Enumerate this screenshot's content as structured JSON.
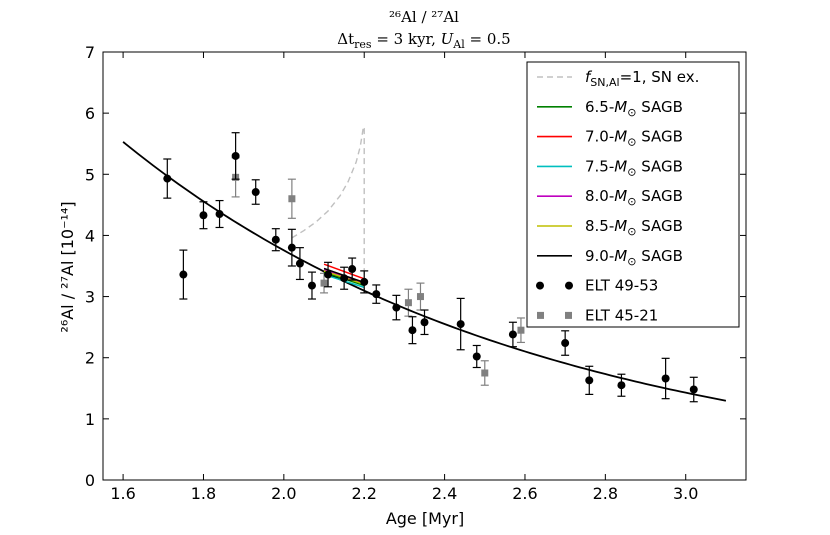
{
  "chart_data": {
    "type": "scatter",
    "title_line1": "²⁶Al / ²⁷Al",
    "title_line2": "Δt",
    "title_line2_sub": "res",
    "title_line2_rest": " = 3 kyr, ",
    "title_line2_u": "U",
    "title_line2_usub": "Al",
    "title_line2_end": " = 0.5",
    "xlabel": "Age [Myr]",
    "ylabel": "²⁶Al / ²⁷Al [10⁻¹⁴]",
    "xlim": [
      1.55,
      3.15
    ],
    "ylim": [
      0,
      7
    ],
    "xticks": [
      1.6,
      1.8,
      2.0,
      2.2,
      2.4,
      2.6,
      2.8,
      3.0
    ],
    "yticks": [
      0,
      1,
      2,
      3,
      4,
      5,
      6,
      7
    ],
    "decay_curve": {
      "name": "9.0-M☉ SAGB",
      "x_start": 1.6,
      "x_end": 3.1,
      "y0": 5.53,
      "mean_life_myr": 1.0341,
      "color": "#000000"
    },
    "sn_curve": {
      "name": "f_SN,Al=1, SN ex.",
      "color": "#c0c0c0",
      "x": [
        2.02,
        2.05,
        2.08,
        2.11,
        2.14,
        2.16,
        2.18,
        2.19,
        2.195,
        2.198,
        2.2,
        2.2
      ],
      "y": [
        3.96,
        4.08,
        4.22,
        4.4,
        4.65,
        4.88,
        5.2,
        5.45,
        5.65,
        5.78,
        5.75,
        3.1
      ]
    },
    "sagb_series": [
      {
        "name": "6.5-M☉ SAGB",
        "color": "#008000",
        "x": [
          2.1,
          2.2
        ],
        "y": [
          3.4,
          3.18
        ]
      },
      {
        "name": "7.0-M☉ SAGB",
        "color": "#ff0000",
        "x": [
          2.1,
          2.2
        ],
        "y": [
          3.53,
          3.29
        ]
      },
      {
        "name": "7.5-M☉ SAGB",
        "color": "#00bfbf",
        "x": [
          2.1,
          2.2
        ],
        "y": [
          3.36,
          3.15
        ]
      },
      {
        "name": "8.0-M☉ SAGB",
        "color": "#bf00bf",
        "x": [
          2.1,
          2.2
        ],
        "y": [
          3.44,
          3.21
        ]
      },
      {
        "name": "8.5-M☉ SAGB",
        "color": "#bfbf00",
        "x": [
          2.1,
          2.2
        ],
        "y": [
          3.42,
          3.2
        ]
      },
      {
        "name": "9.0-M☉ SAGB",
        "color": "#000000",
        "x": [
          2.1,
          2.2
        ],
        "y": [
          3.46,
          3.23
        ]
      }
    ],
    "elt_49_53": {
      "name": "ELT 49-53",
      "color": "#000000",
      "points": [
        {
          "x": 1.71,
          "y": 4.93,
          "err": 0.32
        },
        {
          "x": 1.75,
          "y": 3.36,
          "err": 0.4
        },
        {
          "x": 1.8,
          "y": 4.33,
          "err": 0.22
        },
        {
          "x": 1.84,
          "y": 4.35,
          "err": 0.22
        },
        {
          "x": 1.88,
          "y": 5.3,
          "err": 0.38
        },
        {
          "x": 1.93,
          "y": 4.71,
          "err": 0.2
        },
        {
          "x": 1.98,
          "y": 3.93,
          "err": 0.18
        },
        {
          "x": 2.02,
          "y": 3.8,
          "err": 0.3
        },
        {
          "x": 2.04,
          "y": 3.54,
          "err": 0.26
        },
        {
          "x": 2.07,
          "y": 3.18,
          "err": 0.22
        },
        {
          "x": 2.11,
          "y": 3.36,
          "err": 0.2
        },
        {
          "x": 2.15,
          "y": 3.3,
          "err": 0.18
        },
        {
          "x": 2.17,
          "y": 3.45,
          "err": 0.18
        },
        {
          "x": 2.2,
          "y": 3.24,
          "err": 0.18
        },
        {
          "x": 2.23,
          "y": 3.04,
          "err": 0.15
        },
        {
          "x": 2.28,
          "y": 2.82,
          "err": 0.2
        },
        {
          "x": 2.32,
          "y": 2.45,
          "err": 0.22
        },
        {
          "x": 2.35,
          "y": 2.58,
          "err": 0.2
        },
        {
          "x": 2.44,
          "y": 2.55,
          "err": 0.42
        },
        {
          "x": 2.48,
          "y": 2.02,
          "err": 0.18
        },
        {
          "x": 2.57,
          "y": 2.38,
          "err": 0.2
        },
        {
          "x": 2.7,
          "y": 2.24,
          "err": 0.2
        },
        {
          "x": 2.76,
          "y": 1.63,
          "err": 0.23
        },
        {
          "x": 2.84,
          "y": 1.55,
          "err": 0.18
        },
        {
          "x": 2.95,
          "y": 1.66,
          "err": 0.33
        },
        {
          "x": 3.02,
          "y": 1.48,
          "err": 0.2
        }
      ]
    },
    "elt_45_21": {
      "name": "ELT 45-21",
      "color": "#808080",
      "points": [
        {
          "x": 1.88,
          "y": 4.95,
          "err": 0.32
        },
        {
          "x": 2.02,
          "y": 4.6,
          "err": 0.32
        },
        {
          "x": 2.1,
          "y": 3.22,
          "err": 0.16
        },
        {
          "x": 2.31,
          "y": 2.9,
          "err": 0.22
        },
        {
          "x": 2.34,
          "y": 3.0,
          "err": 0.22
        },
        {
          "x": 2.5,
          "y": 1.75,
          "err": 0.2
        },
        {
          "x": 2.59,
          "y": 2.45,
          "err": 0.2
        }
      ]
    },
    "legend_position": "top-right",
    "legend": [
      {
        "label_pre": "",
        "label_var": "f",
        "label_sub": "SN,Al",
        "label_post": "=1, SN ex.",
        "style": "dashed",
        "color": "#c0c0c0"
      },
      {
        "label_pre": "6.5-",
        "label_var": "M",
        "label_sub": "⊙",
        "label_post": " SAGB",
        "style": "line",
        "color": "#008000"
      },
      {
        "label_pre": "7.0-",
        "label_var": "M",
        "label_sub": "⊙",
        "label_post": " SAGB",
        "style": "line",
        "color": "#ff0000"
      },
      {
        "label_pre": "7.5-",
        "label_var": "M",
        "label_sub": "⊙",
        "label_post": " SAGB",
        "style": "line",
        "color": "#00bfbf"
      },
      {
        "label_pre": "8.0-",
        "label_var": "M",
        "label_sub": "⊙",
        "label_post": " SAGB",
        "style": "line",
        "color": "#bf00bf"
      },
      {
        "label_pre": "8.5-",
        "label_var": "M",
        "label_sub": "⊙",
        "label_post": " SAGB",
        "style": "line",
        "color": "#bfbf00"
      },
      {
        "label_pre": "9.0-",
        "label_var": "M",
        "label_sub": "⊙",
        "label_post": " SAGB",
        "style": "line",
        "color": "#000000"
      },
      {
        "label_pre": "ELT 49-53",
        "label_var": "",
        "label_sub": "",
        "label_post": "",
        "style": "circles",
        "color": "#000000"
      },
      {
        "label_pre": "ELT 45-21",
        "label_var": "",
        "label_sub": "",
        "label_post": "",
        "style": "squares",
        "color": "#808080"
      }
    ]
  }
}
